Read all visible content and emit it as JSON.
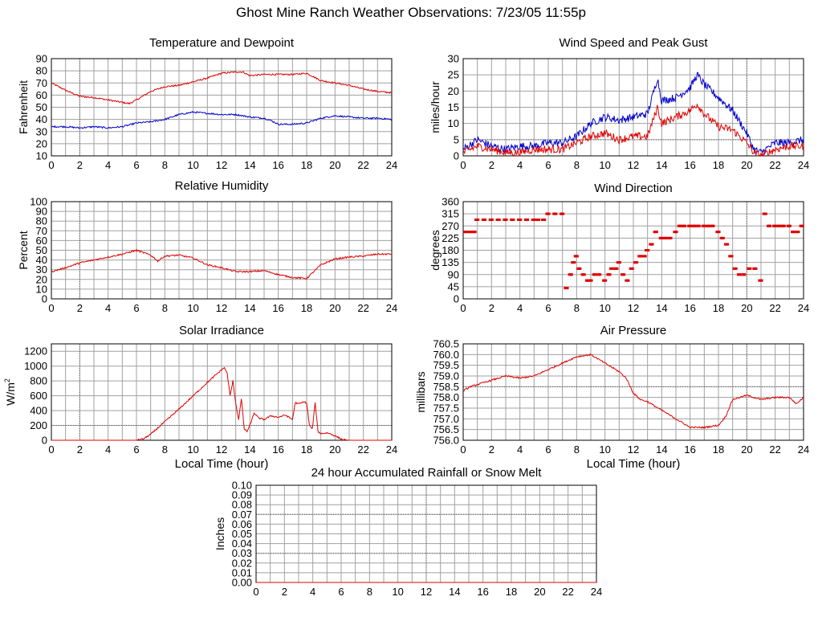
{
  "page": {
    "title": "Ghost Mine Ranch Weather Observations: 7/23/05 11:55p"
  },
  "colors": {
    "red": "#e00000",
    "blue": "#0000cc",
    "grid": "#a0a0a0",
    "dotted": "#606060"
  },
  "chart_data": [
    {
      "id": "temp",
      "type": "line",
      "title": "Temperature and Dewpoint",
      "ylabel": "Fahrenheit",
      "xlabel": "",
      "ylim": [
        10,
        90
      ],
      "yticks": [
        10,
        20,
        30,
        40,
        50,
        60,
        70,
        80,
        90
      ],
      "xlim": [
        0,
        24
      ],
      "xticks": [
        0,
        2,
        4,
        6,
        8,
        10,
        12,
        14,
        16,
        18,
        20,
        22,
        24
      ],
      "hline": null,
      "vlines": [
        2
      ],
      "series": [
        {
          "color": "red",
          "x": [
            0,
            1,
            2,
            3,
            4,
            5,
            5.5,
            6,
            7,
            8,
            9,
            10,
            11,
            12,
            13,
            13.5,
            14,
            15,
            16,
            17,
            18,
            19,
            20,
            21,
            22,
            23,
            24
          ],
          "y": [
            70,
            64,
            59,
            58,
            56,
            54,
            53,
            56,
            63,
            67,
            68,
            71,
            74,
            78,
            79,
            79,
            76,
            77,
            77,
            77,
            78,
            72,
            70,
            68,
            65,
            63,
            62
          ]
        },
        {
          "color": "blue",
          "x": [
            0,
            1,
            2,
            3,
            4,
            5,
            6,
            7,
            8,
            9,
            10,
            11,
            12,
            13,
            14,
            15,
            15.5,
            16,
            17,
            18,
            19,
            20,
            21,
            22,
            23,
            24
          ],
          "y": [
            34,
            34,
            33,
            34,
            33,
            34,
            37,
            38,
            40,
            44,
            46,
            45,
            44,
            44,
            42,
            41,
            39,
            36,
            36,
            37,
            41,
            43,
            42,
            41,
            41,
            40
          ]
        }
      ]
    },
    {
      "id": "wind",
      "type": "line",
      "title": "Wind Speed and Peak Gust",
      "ylabel": "miles/hour",
      "xlabel": "",
      "ylim": [
        0,
        30
      ],
      "yticks": [
        0,
        5,
        10,
        15,
        20,
        25,
        30
      ],
      "xlim": [
        0,
        24
      ],
      "xticks": [
        0,
        2,
        4,
        6,
        8,
        10,
        12,
        14,
        16,
        18,
        20,
        22,
        24
      ],
      "hline": 5,
      "vlines": [
        20
      ],
      "series": [
        {
          "color": "blue",
          "x": [
            0,
            1,
            2,
            3,
            4,
            5,
            6,
            7,
            8,
            9,
            10,
            11,
            12,
            13,
            13.7,
            14,
            15,
            16,
            16.5,
            17,
            18,
            19,
            20,
            20.5,
            21,
            22,
            23,
            24
          ],
          "y": [
            2,
            5,
            3,
            2,
            3,
            3,
            4,
            4,
            6,
            10,
            12,
            11,
            12,
            13,
            24,
            17,
            18,
            21,
            25,
            22,
            18,
            14,
            7,
            2,
            1,
            4,
            4,
            5
          ]
        },
        {
          "color": "red",
          "x": [
            0,
            1,
            2,
            3,
            4,
            5,
            6,
            7,
            8,
            9,
            10,
            11,
            12,
            13,
            13.7,
            14,
            15,
            16,
            16.5,
            17,
            18,
            19,
            20,
            20.5,
            21,
            22,
            23,
            24
          ],
          "y": [
            1,
            3,
            2,
            1,
            1,
            2,
            2,
            2,
            4,
            6,
            7,
            5,
            6,
            6,
            15,
            10,
            12,
            14,
            16,
            13,
            9,
            8,
            4,
            1,
            0,
            2,
            3,
            3
          ]
        }
      ]
    },
    {
      "id": "rh",
      "type": "line",
      "title": "Relative Humidity",
      "ylabel": "Percent",
      "xlabel": "",
      "ylim": [
        0,
        100
      ],
      "yticks": [
        0,
        10,
        20,
        30,
        40,
        50,
        60,
        70,
        80,
        90,
        100
      ],
      "xlim": [
        0,
        24
      ],
      "xticks": [
        0,
        2,
        4,
        6,
        8,
        10,
        12,
        14,
        16,
        18,
        20,
        22,
        24
      ],
      "hline": null,
      "vlines": [
        2
      ],
      "series": [
        {
          "color": "red",
          "x": [
            0,
            1,
            2,
            3,
            4,
            5,
            6,
            7,
            7.5,
            8,
            9,
            10,
            11,
            12,
            13,
            14,
            15,
            16,
            17,
            18,
            19,
            20,
            21,
            22,
            23,
            24
          ],
          "y": [
            28,
            32,
            37,
            40,
            43,
            46,
            50,
            45,
            39,
            44,
            45,
            42,
            35,
            32,
            28,
            28,
            29,
            25,
            22,
            21,
            35,
            41,
            43,
            44,
            46,
            46
          ]
        }
      ]
    },
    {
      "id": "wdir",
      "type": "scatter",
      "title": "Wind Direction",
      "ylabel": "degrees",
      "xlabel": "",
      "ylim": [
        0,
        360
      ],
      "yticks": [
        0,
        45,
        90,
        135,
        180,
        225,
        270,
        315,
        360
      ],
      "xlim": [
        0,
        24
      ],
      "xticks": [
        0,
        2,
        4,
        6,
        8,
        10,
        12,
        14,
        16,
        18,
        20,
        22,
        24
      ],
      "hline": null,
      "vlines": [
        20
      ],
      "series": [
        {
          "color": "red",
          "x": [
            0.2,
            0.5,
            0.8,
            1.0,
            1.5,
            2.0,
            2.5,
            3.0,
            3.5,
            4.0,
            4.5,
            5.0,
            5.3,
            5.7,
            6.0,
            6.5,
            7.0,
            7.3,
            7.6,
            7.8,
            8.0,
            8.2,
            8.5,
            8.8,
            9.0,
            9.3,
            9.6,
            10.0,
            10.3,
            10.5,
            10.8,
            11.0,
            11.3,
            11.6,
            11.9,
            12.2,
            12.5,
            12.8,
            13.0,
            13.3,
            13.6,
            14.0,
            14.3,
            14.6,
            15.0,
            15.3,
            15.6,
            16.0,
            16.3,
            16.6,
            17.0,
            17.3,
            17.6,
            18.0,
            18.3,
            18.6,
            18.9,
            19.2,
            19.5,
            19.8,
            20.2,
            20.6,
            21.0,
            21.3,
            21.6,
            22.0,
            22.3,
            22.6,
            23.0,
            23.3,
            23.6,
            23.9
          ],
          "y": [
            248,
            248,
            248,
            293,
            293,
            293,
            293,
            293,
            293,
            293,
            293,
            293,
            293,
            293,
            315,
            315,
            315,
            40,
            90,
            135,
            158,
            112,
            90,
            68,
            68,
            90,
            90,
            68,
            90,
            112,
            112,
            135,
            90,
            68,
            112,
            135,
            158,
            158,
            180,
            202,
            248,
            225,
            225,
            225,
            248,
            270,
            270,
            270,
            270,
            270,
            270,
            270,
            270,
            248,
            225,
            202,
            158,
            112,
            90,
            90,
            112,
            112,
            68,
            315,
            270,
            270,
            270,
            270,
            270,
            248,
            248,
            270
          ]
        }
      ]
    },
    {
      "id": "solar",
      "type": "line",
      "title": "Solar Irradiance",
      "ylabel": "W/m",
      "ylabel_sup": "2",
      "xlabel": "Local Time (hour)",
      "ylim": [
        0,
        1300
      ],
      "yticks": [
        0,
        200,
        400,
        600,
        800,
        1000,
        1200
      ],
      "xlim": [
        0,
        24
      ],
      "xticks": [
        0,
        2,
        4,
        6,
        8,
        10,
        12,
        14,
        16,
        18,
        20,
        22,
        24
      ],
      "hline": 200,
      "vlines": [
        2
      ],
      "series": [
        {
          "color": "red",
          "x": [
            0,
            6,
            6.5,
            7,
            8,
            9,
            10,
            11,
            12,
            12.2,
            12.4,
            12.6,
            12.8,
            13.0,
            13.2,
            13.4,
            13.6,
            13.8,
            14.0,
            14.3,
            14.6,
            15,
            15.5,
            16,
            16.5,
            17,
            17.2,
            17.4,
            17.6,
            17.8,
            18,
            18.2,
            18.4,
            18.6,
            18.8,
            19,
            19.5,
            20,
            20.5,
            21,
            22,
            23,
            24
          ],
          "y": [
            0,
            0,
            20,
            80,
            250,
            420,
            600,
            780,
            950,
            980,
            900,
            600,
            800,
            500,
            280,
            560,
            150,
            120,
            200,
            370,
            300,
            280,
            330,
            310,
            340,
            280,
            510,
            490,
            500,
            520,
            500,
            200,
            150,
            500,
            120,
            90,
            100,
            60,
            10,
            0,
            0,
            0,
            0
          ]
        }
      ]
    },
    {
      "id": "press",
      "type": "line",
      "title": "Air Pressure",
      "ylabel": "millibars",
      "xlabel": "Local Time (hour)",
      "ylim": [
        756.0,
        760.5
      ],
      "yticks": [
        756.0,
        756.5,
        757.0,
        757.5,
        758.0,
        758.5,
        759.0,
        759.5,
        760.0,
        760.5
      ],
      "ytick_fmt": 1,
      "xlim": [
        0,
        24
      ],
      "xticks": [
        0,
        2,
        4,
        6,
        8,
        10,
        12,
        14,
        16,
        18,
        20,
        22,
        24
      ],
      "hline": 758.5,
      "vlines": [
        20
      ],
      "series": [
        {
          "color": "red",
          "x": [
            0,
            0.5,
            1,
            2,
            3,
            4,
            5,
            6,
            7,
            8,
            9,
            10,
            11,
            11.5,
            12,
            12.5,
            13,
            14,
            15,
            16,
            17,
            18,
            18.5,
            19,
            19.5,
            20,
            21,
            22,
            23,
            23.5,
            24
          ],
          "y": [
            758.3,
            758.5,
            758.6,
            758.8,
            759.0,
            758.9,
            759.0,
            759.3,
            759.6,
            759.9,
            760.0,
            759.6,
            759.2,
            758.9,
            758.2,
            757.9,
            757.8,
            757.4,
            757.0,
            756.6,
            756.6,
            756.7,
            757.1,
            757.9,
            758.0,
            758.1,
            757.9,
            758.0,
            758.0,
            757.7,
            758.0
          ]
        }
      ]
    },
    {
      "id": "rain",
      "type": "line",
      "title": "24 hour Accumulated Rainfall or Snow Melt",
      "ylabel": "Inches",
      "xlabel": "",
      "ylim": [
        0,
        0.1
      ],
      "yticks": [
        0.0,
        0.01,
        0.02,
        0.03,
        0.04,
        0.05,
        0.06,
        0.07,
        0.08,
        0.09,
        0.1
      ],
      "ytick_fmt": 2,
      "xlim": [
        0,
        24
      ],
      "xticks": [
        0,
        2,
        4,
        6,
        8,
        10,
        12,
        14,
        16,
        18,
        20,
        22,
        24
      ],
      "hline": 0.07,
      "hline2": 0.03,
      "vlines": [
        12
      ],
      "series": [
        {
          "color": "red",
          "x": [
            0,
            24
          ],
          "y": [
            0,
            0
          ]
        }
      ]
    }
  ]
}
